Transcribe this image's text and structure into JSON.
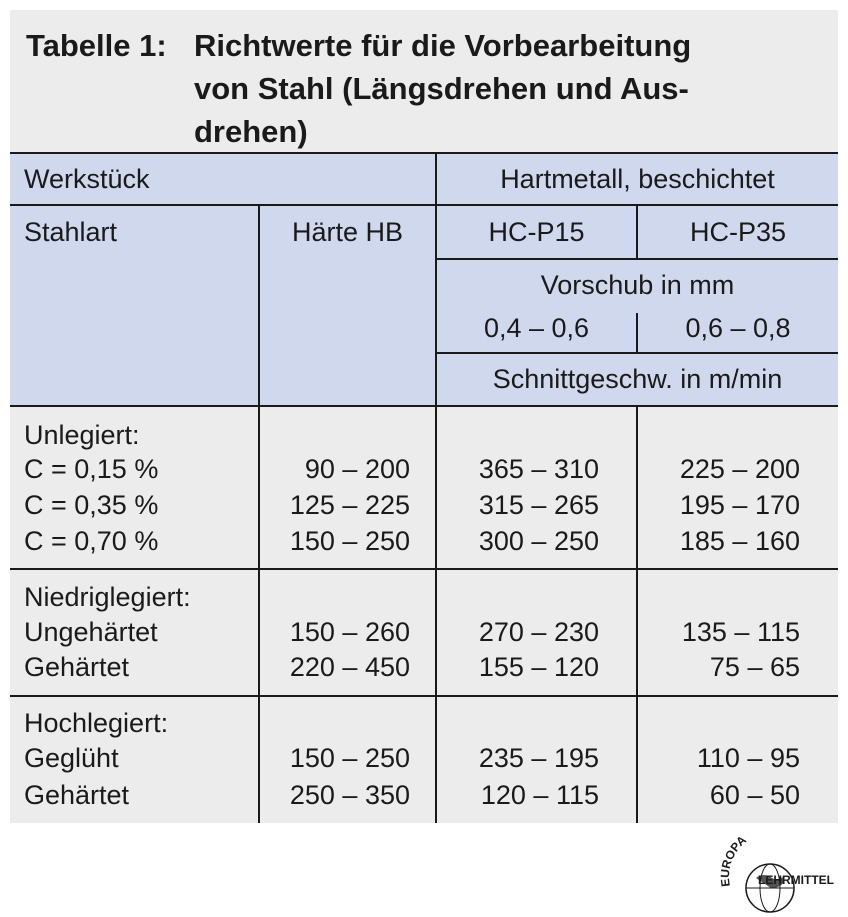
{
  "title": {
    "number": "Tabelle 1:",
    "lines": [
      "Richtwerte für die Vorbearbeitung",
      "von Stahl (Längsdrehen und Aus-",
      "drehen)"
    ]
  },
  "header": {
    "werkstueck": "Werkstück",
    "hartmetall": "Hartmetall, beschichtet",
    "stahlart": "Stahlart",
    "haerte": "Härte HB",
    "hc_p15": "HC-P15",
    "hc_p35": "HC-P35",
    "vorschub": "Vorschub in mm",
    "vorschub_p15": "0,4 – 0,6",
    "vorschub_p35": "0,6 – 0,8",
    "schnittgeschw": "Schnittgeschw. in m/min"
  },
  "groups": [
    {
      "name": "Unlegiert:",
      "rows": [
        {
          "stahl": "C = 0,15 %",
          "haerte": "90 – 200",
          "p15": "365 – 310",
          "p35": "225 – 200"
        },
        {
          "stahl": "C = 0,35 %",
          "haerte": "125 – 225",
          "p15": "315 – 265",
          "p35": "195 – 170"
        },
        {
          "stahl": "C = 0,70 %",
          "haerte": "150 – 250",
          "p15": "300 – 250",
          "p35": "185 – 160"
        }
      ]
    },
    {
      "name": "Niedriglegiert:",
      "rows": [
        {
          "stahl": "Ungehärtet",
          "haerte": "150 – 260",
          "p15": "270 – 230",
          "p35": "135 – 115"
        },
        {
          "stahl": "Gehärtet",
          "haerte": "220 – 450",
          "p15": "155 – 120",
          "p35": "75 –  65"
        }
      ]
    },
    {
      "name": "Hochlegiert:",
      "rows": [
        {
          "stahl": "Geglüht",
          "haerte": "150 – 250",
          "p15": "235 – 195",
          "p35": "110 –  95"
        },
        {
          "stahl": "Gehärtet",
          "haerte": "250 – 350",
          "p15": "120 – 115",
          "p35": "60 –  50"
        }
      ]
    }
  ],
  "logo": {
    "top_text": "EUROPA",
    "bottom_text": "LEHRMITTEL"
  },
  "colors": {
    "header_bg": "#cfd8ec",
    "panel_bg": "#ececec",
    "text": "#1a1a1a"
  }
}
